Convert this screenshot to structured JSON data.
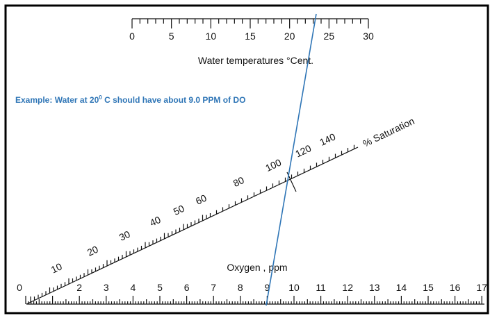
{
  "example": {
    "before": "Example: Water at 20",
    "superscript": "0",
    "after": " C should have about 9.0 PPM of DO"
  },
  "temperature_scale": {
    "label": "Water temperatures °Cent.",
    "ticks": [
      "0",
      "5",
      "10",
      "15",
      "20",
      "25",
      "30"
    ]
  },
  "saturation_scale": {
    "label": "% Saturation",
    "ticks": [
      "10",
      "20",
      "30",
      "40",
      "50",
      "60",
      "80",
      "100",
      "120",
      "140"
    ]
  },
  "oxygen_scale": {
    "label": "Oxygen , ppm",
    "ticks": [
      "0",
      "2",
      "3",
      "4",
      "5",
      "6",
      "7",
      "8",
      "9",
      "10",
      "11",
      "12",
      "13",
      "14",
      "15",
      "16",
      "17"
    ]
  }
}
